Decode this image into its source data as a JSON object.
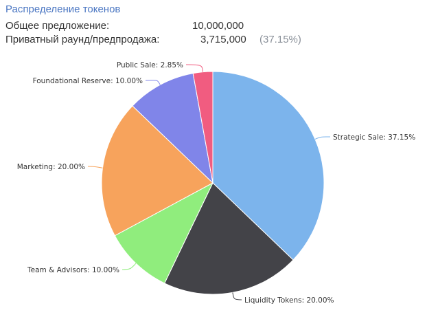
{
  "header": {
    "title": "Распределение токенов",
    "total_supply_label": "Общее предложение:",
    "total_supply_value": "10,000,000",
    "private_round_label": "Приватный раунд/предпродажа:",
    "private_round_value": "3,715,000",
    "private_round_pct": "(37.15%)"
  },
  "chart_data": {
    "type": "pie",
    "title": "",
    "legend": "none",
    "slices": [
      {
        "name": "Strategic Sale",
        "value": 37.15,
        "label": "Strategic Sale: 37.15%",
        "color": "#7cb4ec"
      },
      {
        "name": "Liquidity Tokens",
        "value": 20.0,
        "label": "Liquidity Tokens: 20.00%",
        "color": "#434348"
      },
      {
        "name": "Team & Advisors",
        "value": 10.0,
        "label": "Team & Advisors: 10.00%",
        "color": "#90ed7d"
      },
      {
        "name": "Marketing",
        "value": 20.0,
        "label": "Marketing: 20.00%",
        "color": "#f7a35c"
      },
      {
        "name": "Foundational Reserve",
        "value": 10.0,
        "label": "Foundational Reserve: 10.00%",
        "color": "#8085e9"
      },
      {
        "name": "Public Sale",
        "value": 2.85,
        "label": "Public Sale: 2.85%",
        "color": "#f15c80"
      }
    ]
  }
}
